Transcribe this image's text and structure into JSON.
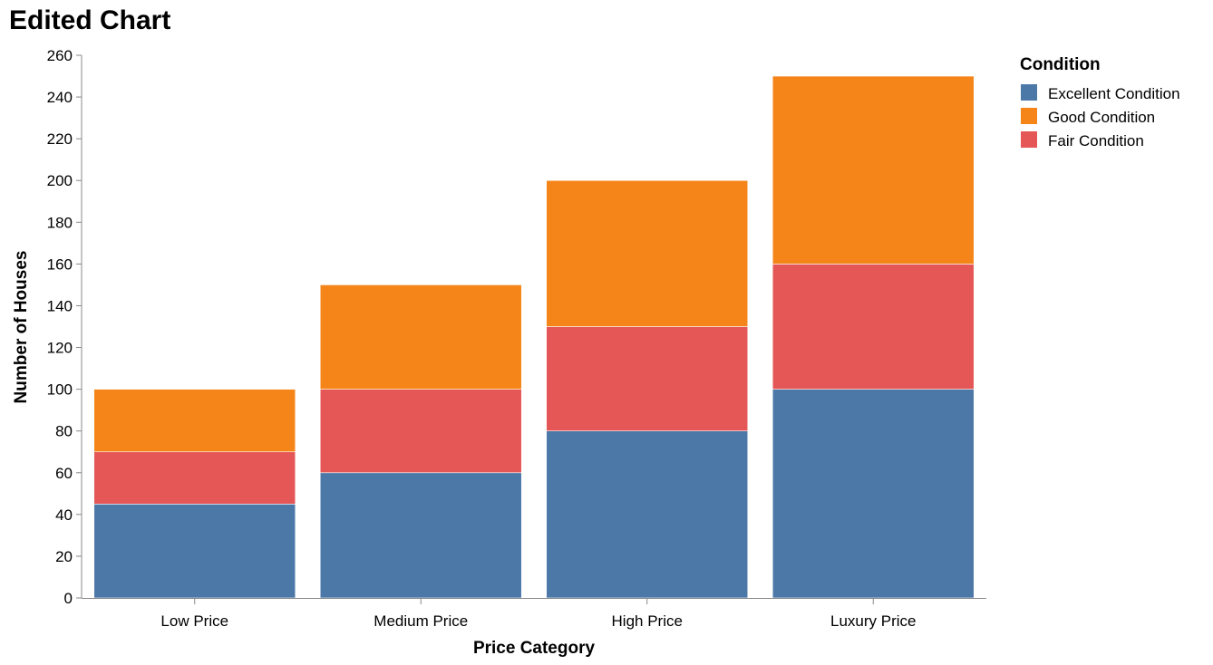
{
  "chart_data": {
    "type": "bar",
    "stacked": true,
    "title": "Edited Chart",
    "xlabel": "Price Category",
    "ylabel": "Number of Houses",
    "categories": [
      "Low Price",
      "Medium Price",
      "High Price",
      "Luxury Price"
    ],
    "series": [
      {
        "name": "Excellent Condition",
        "color": "#4c78a8",
        "values": [
          45,
          60,
          80,
          100
        ]
      },
      {
        "name": "Fair Condition",
        "color": "#e45756",
        "values": [
          25,
          40,
          50,
          60
        ]
      },
      {
        "name": "Good Condition",
        "color": "#f58518",
        "values": [
          30,
          50,
          70,
          90
        ]
      }
    ],
    "ylim": [
      0,
      260
    ],
    "yticks": [
      0,
      20,
      40,
      60,
      80,
      100,
      120,
      140,
      160,
      180,
      200,
      220,
      240,
      260
    ],
    "grid": false,
    "legend": {
      "title": "Condition",
      "position": "top-right",
      "entries": [
        {
          "label": "Excellent Condition",
          "color": "#4c78a8"
        },
        {
          "label": "Good Condition",
          "color": "#f58518"
        },
        {
          "label": "Fair Condition",
          "color": "#e45756"
        }
      ]
    }
  }
}
